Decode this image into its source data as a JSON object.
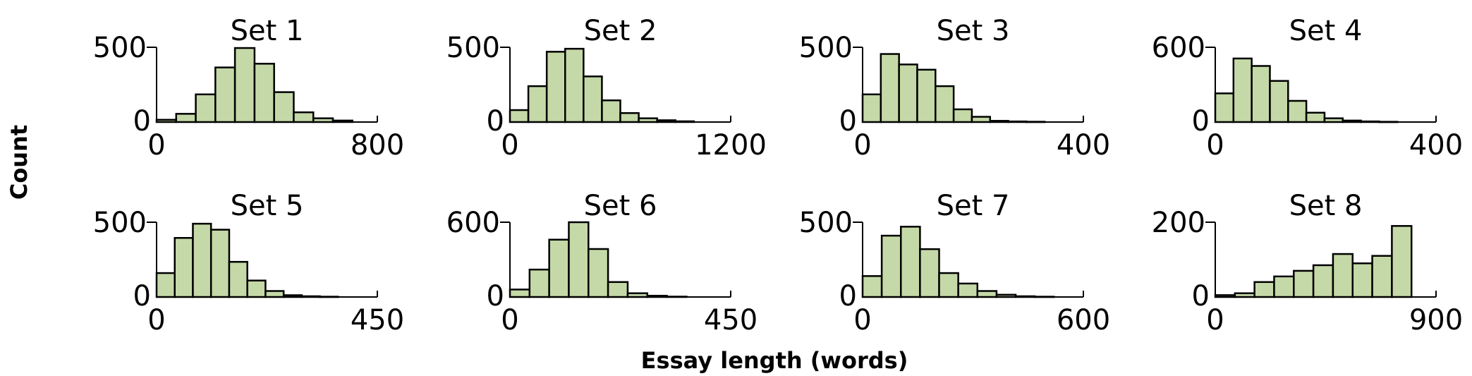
{
  "figure": {
    "xlabel": "Essay length (words)",
    "ylabel": "Count",
    "bar_color": "#c4d9a7",
    "edge_color": "#000000"
  },
  "chart_data": [
    {
      "type": "bar",
      "title": "Set 1",
      "xlim": [
        0,
        800
      ],
      "ylim": [
        0,
        500
      ],
      "xticks": [
        "0",
        "800"
      ],
      "yticks": [
        "0",
        "500"
      ],
      "bin_width": 71,
      "values": [
        15,
        55,
        185,
        365,
        495,
        390,
        200,
        65,
        25,
        10
      ]
    },
    {
      "type": "bar",
      "title": "Set 2",
      "xlim": [
        0,
        1200
      ],
      "ylim": [
        0,
        500
      ],
      "xticks": [
        "0",
        "1200"
      ],
      "yticks": [
        "0",
        "500"
      ],
      "bin_width": 100,
      "values": [
        80,
        240,
        470,
        490,
        305,
        145,
        60,
        25,
        12,
        5
      ]
    },
    {
      "type": "bar",
      "title": "Set 3",
      "xlim": [
        0,
        400
      ],
      "ylim": [
        0,
        500
      ],
      "xticks": [
        "0",
        "400"
      ],
      "yticks": [
        "0",
        "500"
      ],
      "bin_width": 33,
      "values": [
        185,
        455,
        385,
        350,
        240,
        85,
        35,
        8,
        4,
        2
      ]
    },
    {
      "type": "bar",
      "title": "Set 4",
      "xlim": [
        0,
        400
      ],
      "ylim": [
        0,
        600
      ],
      "xticks": [
        "0",
        "400"
      ],
      "yticks": [
        "0",
        "600"
      ],
      "bin_width": 33,
      "values": [
        230,
        510,
        450,
        330,
        170,
        75,
        30,
        12,
        5,
        2
      ]
    },
    {
      "type": "bar",
      "title": "Set 5",
      "xlim": [
        0,
        450
      ],
      "ylim": [
        0,
        500
      ],
      "xticks": [
        "0",
        "450"
      ],
      "yticks": [
        "0",
        "500"
      ],
      "bin_width": 37,
      "values": [
        160,
        395,
        490,
        450,
        235,
        110,
        40,
        12,
        5,
        2
      ]
    },
    {
      "type": "bar",
      "title": "Set 6",
      "xlim": [
        0,
        450
      ],
      "ylim": [
        0,
        600
      ],
      "xticks": [
        "0",
        "450"
      ],
      "yticks": [
        "0",
        "600"
      ],
      "bin_width": 40,
      "values": [
        60,
        220,
        460,
        600,
        385,
        120,
        30,
        10,
        3
      ]
    },
    {
      "type": "bar",
      "title": "Set 7",
      "xlim": [
        0,
        600
      ],
      "ylim": [
        0,
        500
      ],
      "xticks": [
        "0",
        "600"
      ],
      "yticks": [
        "0",
        "500"
      ],
      "bin_width": 52,
      "values": [
        140,
        410,
        470,
        320,
        160,
        90,
        40,
        15,
        5,
        2
      ]
    },
    {
      "type": "bar",
      "title": "Set 8",
      "xlim": [
        0,
        900
      ],
      "ylim": [
        0,
        200
      ],
      "xticks": [
        "0",
        "900"
      ],
      "yticks": [
        "0",
        "200"
      ],
      "bin_width": 80,
      "values": [
        5,
        10,
        40,
        55,
        70,
        85,
        115,
        90,
        110,
        190
      ]
    }
  ]
}
